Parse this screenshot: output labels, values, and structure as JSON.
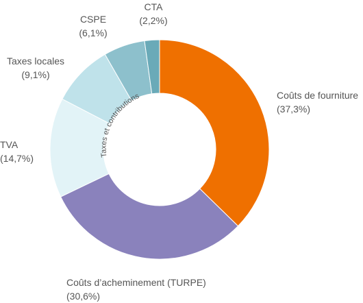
{
  "chart_data": {
    "type": "pie",
    "variant": "donut",
    "colors": {
      "couts_fourniture": "#ef7000",
      "couts_acheminement": "#8a82bc",
      "tva": "#e2f3f7",
      "taxes_locales": "#bfe2ea",
      "cspe": "#8dc0cc",
      "cta": "#6aaab8",
      "separator": "#ffffff",
      "label_text": "#555555"
    },
    "group_label": "Taxes et contributions",
    "slices": [
      {
        "key": "couts_fourniture",
        "name": "Coûts de fourniture",
        "value": 37.3,
        "value_label": "(37,3%)"
      },
      {
        "key": "couts_acheminement",
        "name": "Coûts d’acheminement (TURPE)",
        "value": 30.6,
        "value_label": "(30,6%)"
      },
      {
        "key": "tva",
        "name": "TVA",
        "value": 14.7,
        "value_label": "(14,7%)"
      },
      {
        "key": "taxes_locales",
        "name": "Taxes locales",
        "value": 9.1,
        "value_label": "(9,1%)"
      },
      {
        "key": "cspe",
        "name": "CSPE",
        "value": 6.1,
        "value_label": "(6,1%)"
      },
      {
        "key": "cta",
        "name": "CTA",
        "value": 2.2,
        "value_label": "(2,2%)"
      }
    ]
  }
}
